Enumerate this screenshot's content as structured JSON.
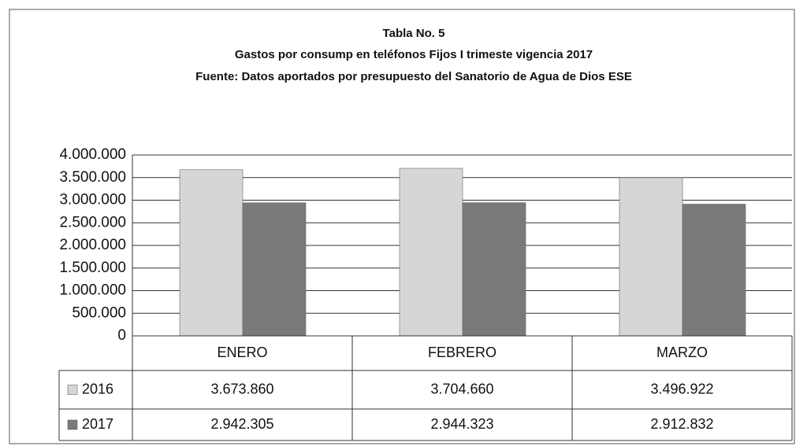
{
  "chart_data": {
    "type": "bar",
    "title": "Tabla No. 5",
    "subtitle": "Gastos por consump en teléfonos Fijos  I trimeste vigencia 2017",
    "source": "Fuente: Datos aportados por presupuesto del Sanatorio de Agua de Dios ESE",
    "categories": [
      "ENERO",
      "FEBRERO",
      "MARZO"
    ],
    "series": [
      {
        "name": "2016",
        "color": "#d6d6d6",
        "values": [
          3673860,
          3704660,
          3496922
        ],
        "value_labels": [
          "3.673.860",
          "3.704.660",
          "3.496.922"
        ]
      },
      {
        "name": "2017",
        "color": "#7a7a7a",
        "values": [
          2942305,
          2944323,
          2912832
        ],
        "value_labels": [
          "2.942.305",
          "2.944.323",
          "2.912.832"
        ]
      }
    ],
    "ylim": [
      0,
      4000000
    ],
    "yticks": [
      0,
      {
        "value": 500000,
        "label": "500.000"
      },
      {
        "value": 1000000,
        "label": "1.000.000"
      },
      {
        "value": 1500000,
        "label": "1.500.000"
      },
      {
        "value": 2000000,
        "label": "2.000.000"
      },
      {
        "value": 2500000,
        "label": "2.500.000"
      },
      {
        "value": 3000000,
        "label": "3.000.000"
      },
      {
        "value": 3500000,
        "label": "3.500.000"
      },
      {
        "value": 4000000,
        "label": "4.000.000"
      }
    ],
    "grid": true
  }
}
